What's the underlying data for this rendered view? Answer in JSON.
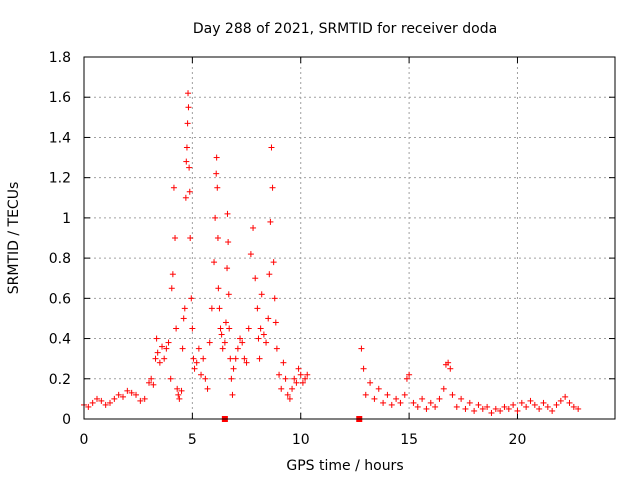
{
  "chart_data": {
    "type": "scatter",
    "title": "Day 288 of 2021, SRMTID for receiver doda",
    "xlabel": "GPS time / hours",
    "ylabel": "SRMTID / TECUs",
    "xlim": [
      0,
      24.5
    ],
    "ylim": [
      0,
      1.8
    ],
    "xticks": [
      0,
      5,
      10,
      15,
      20
    ],
    "xtick_labels": [
      "0",
      "5",
      "10",
      "15",
      "20"
    ],
    "yticks": [
      0,
      0.2,
      0.4,
      0.6,
      0.8,
      1,
      1.2,
      1.4,
      1.6,
      1.8
    ],
    "ytick_labels": [
      "0",
      "0.2",
      "0.4",
      "0.6",
      "0.8",
      "1",
      "1.2",
      "1.4",
      "1.6",
      "1.8"
    ],
    "grid": true,
    "marker": "+",
    "color": "#ff0000",
    "series": [
      {
        "name": "doda",
        "x": [
          0.0,
          0.2,
          0.4,
          0.6,
          0.8,
          1.0,
          1.2,
          1.4,
          1.6,
          1.8,
          2.0,
          2.2,
          2.4,
          2.6,
          2.8,
          3.0,
          3.1,
          3.2,
          3.3,
          3.35,
          3.4,
          3.5,
          3.6,
          3.7,
          3.8,
          3.9,
          4.0,
          4.05,
          4.1,
          4.15,
          4.2,
          4.25,
          4.3,
          4.35,
          4.4,
          4.5,
          4.55,
          4.6,
          4.65,
          4.7,
          4.72,
          4.75,
          4.78,
          4.8,
          4.82,
          4.85,
          4.88,
          4.9,
          4.95,
          5.0,
          5.05,
          5.1,
          5.2,
          5.3,
          5.4,
          5.5,
          5.6,
          5.7,
          5.8,
          5.9,
          6.0,
          6.05,
          6.1,
          6.12,
          6.15,
          6.18,
          6.2,
          6.25,
          6.3,
          6.35,
          6.4,
          6.5,
          6.55,
          6.6,
          6.62,
          6.65,
          6.68,
          6.7,
          6.75,
          6.8,
          6.85,
          6.9,
          7.0,
          7.1,
          7.2,
          7.3,
          7.4,
          7.5,
          7.6,
          7.7,
          7.8,
          7.9,
          8.0,
          8.05,
          8.1,
          8.15,
          8.2,
          8.3,
          8.4,
          8.5,
          8.55,
          8.6,
          8.65,
          8.7,
          8.75,
          8.8,
          8.85,
          8.9,
          9.0,
          9.1,
          9.2,
          9.3,
          9.4,
          9.5,
          9.6,
          9.7,
          9.8,
          9.9,
          10.0,
          10.1,
          10.2,
          10.3,
          12.7,
          12.8,
          12.9,
          13.0,
          13.2,
          13.4,
          13.6,
          13.8,
          14.0,
          14.2,
          14.4,
          14.6,
          14.8,
          14.9,
          15.0,
          15.2,
          15.4,
          15.6,
          15.8,
          16.0,
          16.2,
          16.4,
          16.6,
          16.7,
          16.8,
          16.9,
          17.0,
          17.2,
          17.4,
          17.6,
          17.8,
          18.0,
          18.2,
          18.4,
          18.6,
          18.8,
          19.0,
          19.2,
          19.4,
          19.6,
          19.8,
          20.0,
          20.2,
          20.4,
          20.6,
          20.8,
          21.0,
          21.2,
          21.4,
          21.6,
          21.8,
          22.0,
          22.2,
          22.4,
          22.6,
          22.8
        ],
        "y": [
          0.07,
          0.06,
          0.08,
          0.1,
          0.09,
          0.07,
          0.08,
          0.1,
          0.12,
          0.11,
          0.14,
          0.13,
          0.12,
          0.09,
          0.1,
          0.18,
          0.2,
          0.17,
          0.3,
          0.4,
          0.33,
          0.28,
          0.36,
          0.3,
          0.35,
          0.38,
          0.2,
          0.65,
          0.72,
          1.15,
          0.9,
          0.45,
          0.15,
          0.12,
          0.1,
          0.14,
          0.35,
          0.5,
          0.55,
          1.1,
          1.28,
          1.35,
          1.47,
          1.62,
          1.55,
          1.25,
          1.13,
          0.9,
          0.6,
          0.45,
          0.3,
          0.25,
          0.28,
          0.35,
          0.22,
          0.3,
          0.2,
          0.15,
          0.38,
          0.55,
          0.78,
          1.0,
          1.22,
          1.3,
          1.15,
          0.9,
          0.65,
          0.55,
          0.45,
          0.42,
          0.35,
          0.38,
          0.48,
          0.75,
          1.02,
          0.88,
          0.62,
          0.45,
          0.3,
          0.2,
          0.12,
          0.25,
          0.3,
          0.35,
          0.4,
          0.38,
          0.3,
          0.28,
          0.45,
          0.82,
          0.95,
          0.7,
          0.55,
          0.4,
          0.3,
          0.45,
          0.62,
          0.42,
          0.38,
          0.5,
          0.72,
          0.98,
          1.35,
          1.15,
          0.78,
          0.6,
          0.48,
          0.35,
          0.22,
          0.15,
          0.28,
          0.2,
          0.12,
          0.1,
          0.15,
          0.2,
          0.18,
          0.25,
          0.22,
          0.18,
          0.2,
          0.22,
          0.0,
          0.35,
          0.25,
          0.12,
          0.18,
          0.1,
          0.15,
          0.08,
          0.12,
          0.07,
          0.1,
          0.08,
          0.12,
          0.2,
          0.22,
          0.08,
          0.06,
          0.1,
          0.05,
          0.08,
          0.06,
          0.1,
          0.15,
          0.27,
          0.28,
          0.25,
          0.12,
          0.06,
          0.1,
          0.05,
          0.08,
          0.04,
          0.07,
          0.05,
          0.06,
          0.03,
          0.05,
          0.04,
          0.06,
          0.05,
          0.07,
          0.04,
          0.08,
          0.06,
          0.09,
          0.07,
          0.05,
          0.08,
          0.06,
          0.04,
          0.07,
          0.09,
          0.11,
          0.08,
          0.06,
          0.05
        ]
      }
    ],
    "zero_markers": {
      "marker": "square",
      "x": [
        6.5,
        12.7
      ],
      "y": [
        0,
        0
      ]
    }
  }
}
